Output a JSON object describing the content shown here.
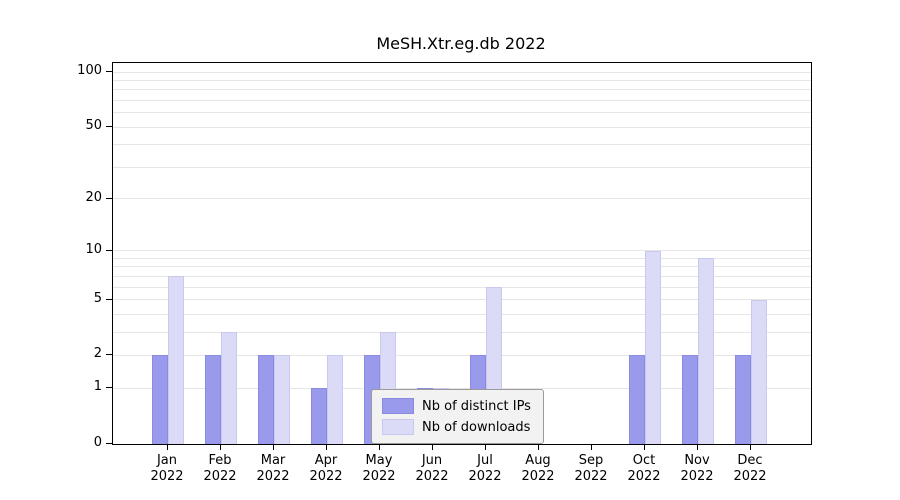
{
  "chart_data": {
    "type": "bar",
    "title": "MeSH.Xtr.eg.db 2022",
    "categories": [
      "Jan",
      "Feb",
      "Mar",
      "Apr",
      "May",
      "Jun",
      "Jul",
      "Aug",
      "Sep",
      "Oct",
      "Nov",
      "Dec"
    ],
    "year_label": "2022",
    "series": [
      {
        "name": "Nb of distinct IPs",
        "color": "#999aeb",
        "edge_color": "#8a8be0",
        "values": [
          2,
          2,
          2,
          1,
          2,
          1,
          2,
          0,
          0,
          2,
          2,
          2
        ]
      },
      {
        "name": "Nb of downloads",
        "color": "#dbdbf8",
        "edge_color": "#c9c9ef",
        "values": [
          7,
          3,
          2,
          2,
          3,
          1,
          6,
          0,
          0,
          10,
          9,
          5
        ]
      }
    ],
    "y_scale": "log1p",
    "y_tick_labels": [
      0,
      1,
      2,
      5,
      10,
      20,
      50,
      100
    ],
    "y_gridlines": [
      1,
      2,
      3,
      4,
      5,
      6,
      7,
      8,
      9,
      10,
      20,
      30,
      40,
      50,
      60,
      70,
      80,
      90,
      100
    ],
    "ylim": [
      0,
      112
    ],
    "grid": "on",
    "legend_position": "bottom-center"
  }
}
